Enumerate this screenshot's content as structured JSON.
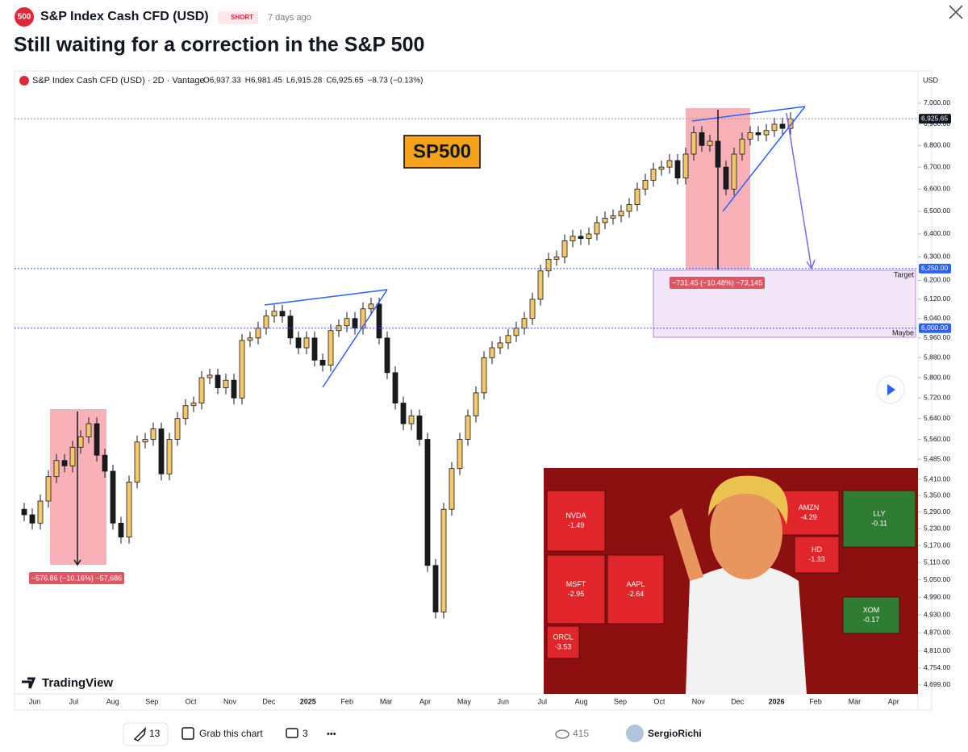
{
  "header": {
    "logo": "500",
    "symbol": "S&P Index Cash CFD (USD)",
    "badge": "SHORT",
    "time": "7 days ago",
    "title": "Still waiting for a correction in the S&P 500"
  },
  "chart": {
    "type": "candlestick",
    "legend_title": "S&P Index Cash CFD (USD) · 2D · Vantage",
    "ohlc": [
      "O6,937.33",
      "H6,981.45",
      "L6,915.28",
      "C6,925.65",
      "−8.73 (−0.13%)"
    ],
    "currency": "USD",
    "log": true,
    "up_color": "#f4c867",
    "down_color": "#1a1a1a",
    "closes": [
      5300,
      5280,
      5250,
      5330,
      5420,
      5480,
      5460,
      5530,
      5570,
      5620,
      5500,
      5440,
      5250,
      5200,
      5400,
      5550,
      5560,
      5600,
      5430,
      5560,
      5640,
      5690,
      5700,
      5800,
      5810,
      5760,
      5790,
      5720,
      5950,
      5960,
      6000,
      6050,
      6070,
      6050,
      5960,
      5920,
      5960,
      5870,
      5850,
      5990,
      6010,
      6040,
      6000,
      6080,
      6100,
      5960,
      5820,
      5700,
      5620,
      5650,
      5560,
      5100,
      4940,
      5300,
      5450,
      5560,
      5650,
      5740,
      5880,
      5920,
      5940,
      5970,
      6000,
      6040,
      6120,
      6240,
      6290,
      6300,
      6370,
      6390,
      6380,
      6400,
      6450,
      6470,
      6480,
      6500,
      6530,
      6600,
      6640,
      6690,
      6700,
      6730,
      6650,
      6760,
      6860,
      6800,
      6820,
      6700,
      6600,
      6760,
      6830,
      6860,
      6850,
      6870,
      6900,
      6880,
      6925.65
    ],
    "ylim": [
      4619,
      7148
    ],
    "yticks": [
      {
        "value": 7000,
        "label": "7,000.00"
      },
      {
        "value": 6900,
        "label": "6,900.00"
      },
      {
        "value": 6800,
        "label": "6,800.00"
      },
      {
        "value": 6700,
        "label": "6,700.00"
      },
      {
        "value": 6600,
        "label": "6,600.00"
      },
      {
        "value": 6500,
        "label": "6,500.00"
      },
      {
        "value": 6400,
        "label": "6,400.00"
      },
      {
        "value": 6300,
        "label": "6,300.00"
      },
      {
        "value": 6200,
        "label": "6,200.00"
      },
      {
        "value": 6120,
        "label": "6,120.00"
      },
      {
        "value": 6040,
        "label": "6,040.00"
      },
      {
        "value": 5960,
        "label": "5,960.00"
      },
      {
        "value": 5880,
        "label": "5,880.00"
      },
      {
        "value": 5800,
        "label": "5,800.00"
      },
      {
        "value": 5720,
        "label": "5,720.00"
      },
      {
        "value": 5640,
        "label": "5,640.00"
      },
      {
        "value": 5560,
        "label": "5,560.00"
      },
      {
        "value": 5485,
        "label": "5,485.00"
      },
      {
        "value": 5410,
        "label": "5,410.00"
      },
      {
        "value": 5350,
        "label": "5,350.00"
      },
      {
        "value": 5290,
        "label": "5,290.00"
      },
      {
        "value": 5230,
        "label": "5,230.00"
      },
      {
        "value": 5170,
        "label": "5,170.00"
      },
      {
        "value": 5110,
        "label": "5,110.00"
      },
      {
        "value": 5050,
        "label": "5,050.00"
      },
      {
        "value": 4990,
        "label": "4,990.00"
      },
      {
        "value": 4930,
        "label": "4,930.00"
      },
      {
        "value": 4870,
        "label": "4,870.00"
      },
      {
        "value": 4810,
        "label": "4,810.00"
      },
      {
        "value": 4754,
        "label": "4,754.00"
      },
      {
        "value": 4699,
        "label": "4,699.00"
      }
    ],
    "x_labels": [
      "Jun",
      "Jul",
      "Aug",
      "Sep",
      "Oct",
      "Nov",
      "Dec",
      "2025",
      "Feb",
      "Mar",
      "Apr",
      "May",
      "Jun",
      "Jul",
      "Aug",
      "Sep",
      "Oct",
      "Nov",
      "Dec",
      "2026",
      "Feb",
      "Mar",
      "Apr"
    ],
    "levels": [
      {
        "value": 6925.65,
        "label": "6,925.65",
        "color": "#131722"
      },
      {
        "value": 6250,
        "label": "6,250.00",
        "color": "#2962ff"
      },
      {
        "value": 6000,
        "label": "6,000.00",
        "color": "#2962ff"
      }
    ],
    "label_box": "SP500",
    "ranges": [
      "−576.86 (−10.16%) −57,686",
      "−731.45 (−10.48%) −73,145"
    ],
    "target": "Target",
    "maybe": "Maybe",
    "watermark": "TradingView"
  },
  "inset": {
    "tiles": [
      {
        "label": "NVDA",
        "change": "-1.49"
      },
      {
        "label": "MSFT",
        "change": "-2.95"
      },
      {
        "label": "AAPL",
        "change": "-2.64"
      },
      {
        "label": "AMZN",
        "change": "-4.29"
      },
      {
        "label": "LLY",
        "change": "-0.11"
      },
      {
        "label": "HD",
        "change": "-1.33"
      },
      {
        "label": "XOM",
        "change": "-0.17"
      },
      {
        "label": "ORCL",
        "change": "-3.53"
      }
    ]
  },
  "footer": {
    "boosts": 13,
    "grab": "Grab this chart",
    "comments": 3,
    "more": "•••",
    "views": 415,
    "author": "SergioRichi"
  }
}
